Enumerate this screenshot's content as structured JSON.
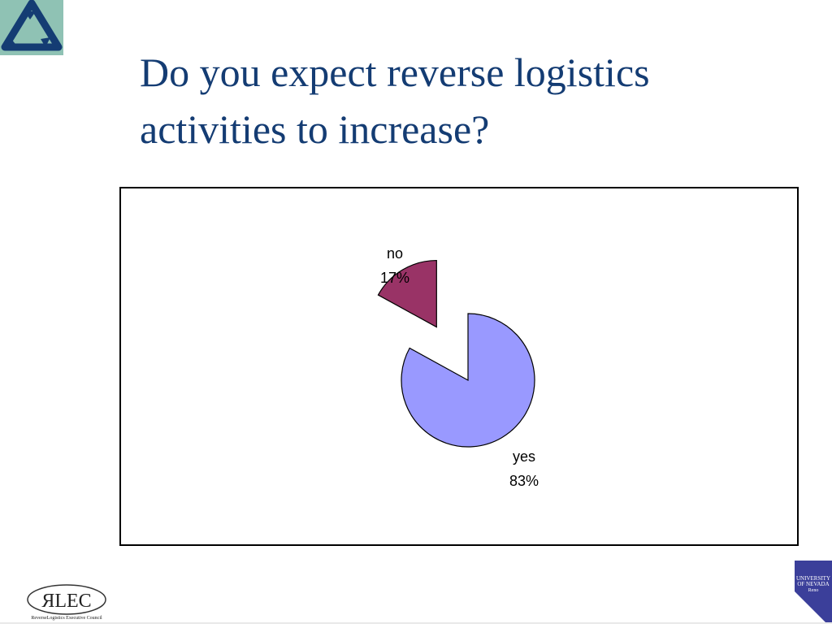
{
  "slide": {
    "title_lines": [
      "Do you expect reverse logistics",
      "activities to increase?"
    ]
  },
  "logos": {
    "top_left_icon": "triangular-arrows-icon",
    "bottom_left_text": "ЯLEC",
    "bottom_left_subtext": "ReverseLogistics Executive Council",
    "bottom_right_text_1": "UNIVERSITY",
    "bottom_right_text_2": "OF NEVADA",
    "bottom_right_text_3": "Reno"
  },
  "colors": {
    "title": "#143c73",
    "yes_slice": "#9999ff",
    "no_slice": "#993366",
    "logo_bg": "#8fc2b4",
    "unr_blue": "#3b3f9a"
  },
  "chart_data": {
    "type": "pie",
    "title": "",
    "slices": [
      {
        "label": "yes",
        "value": 83,
        "value_label": "83%",
        "color": "#9999ff",
        "exploded": false
      },
      {
        "label": "no",
        "value": 17,
        "value_label": "17%",
        "color": "#993366",
        "exploded": true
      }
    ],
    "start_angle_deg": 0,
    "direction": "clockwise",
    "legend": "none"
  }
}
